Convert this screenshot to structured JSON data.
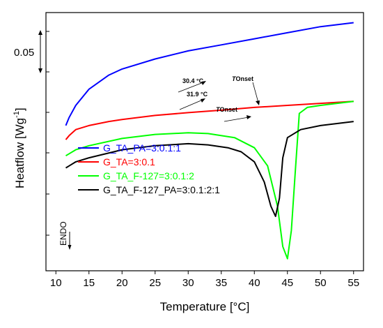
{
  "chart_data": {
    "type": "line",
    "xlabel": "Temperature [°C]",
    "ylabel_main": "Heatflow [Wg",
    "ylabel_sup": "-1",
    "ylabel_close": "]",
    "xlim": [
      8.5,
      56.5
    ],
    "x_ticks": [
      10,
      15,
      20,
      25,
      30,
      35,
      40,
      45,
      50,
      55
    ],
    "scale_bar_label": "0.05",
    "endo_label": "ENDO",
    "annotations": [
      {
        "text": "30.4 °C"
      },
      {
        "text": "31.9 °C"
      },
      {
        "text": "TOnset",
        "italic_prefix": "T",
        "rest": "Onset"
      },
      {
        "text": "TOnset",
        "italic_prefix": "T",
        "rest": "Onset"
      }
    ],
    "series": [
      {
        "name": "G_TA_PA=3:0.1:1",
        "color": "#0000ff",
        "x": [
          11.5,
          12,
          13,
          15,
          18,
          20,
          25,
          30,
          35,
          40,
          45,
          50,
          55
        ],
        "y": [
          0.96,
          0.98,
          1.01,
          1.05,
          1.085,
          1.1,
          1.125,
          1.145,
          1.16,
          1.175,
          1.19,
          1.205,
          1.215
        ]
      },
      {
        "name": "G_TA=3:0.1",
        "color": "#ff0000",
        "x": [
          11.5,
          12,
          13,
          15,
          18,
          20,
          25,
          30,
          35,
          40,
          45,
          50,
          55
        ],
        "y": [
          0.925,
          0.935,
          0.95,
          0.96,
          0.97,
          0.975,
          0.985,
          0.992,
          0.998,
          1.005,
          1.01,
          1.015,
          1.02
        ]
      },
      {
        "name": "G_TA_F-127=3:0.1:2",
        "color": "#00ff00",
        "x": [
          11.5,
          12,
          13,
          15,
          20,
          25,
          30,
          33,
          37,
          40,
          42,
          43.5,
          44.3,
          45,
          45.6,
          46.2,
          46.8,
          48,
          50,
          55
        ],
        "y": [
          0.885,
          0.89,
          0.9,
          0.91,
          0.928,
          0.938,
          0.942,
          0.94,
          0.93,
          0.905,
          0.86,
          0.76,
          0.66,
          0.63,
          0.7,
          0.85,
          0.99,
          1.005,
          1.01,
          1.02
        ]
      },
      {
        "name": "G_TA_F-127_PA=3:0.1:2:1",
        "color": "#000000",
        "x": [
          11.5,
          12,
          13,
          15,
          20,
          25,
          30,
          33,
          36,
          38,
          40,
          41.5,
          42.5,
          43.2,
          43.8,
          44.3,
          45,
          47,
          50,
          55
        ],
        "y": [
          0.855,
          0.86,
          0.87,
          0.88,
          0.9,
          0.91,
          0.915,
          0.912,
          0.905,
          0.895,
          0.87,
          0.82,
          0.76,
          0.735,
          0.78,
          0.88,
          0.93,
          0.95,
          0.96,
          0.97
        ]
      }
    ],
    "ylim": [
      0.6,
      1.24
    ],
    "scale_bar_value": 0.05
  }
}
